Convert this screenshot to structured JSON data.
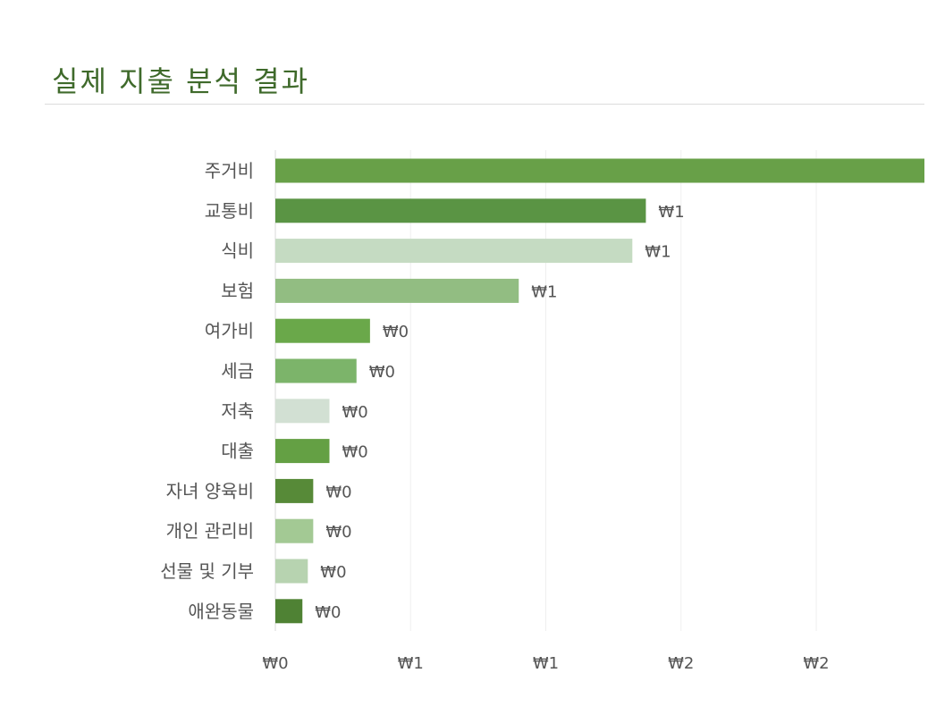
{
  "header": {
    "title": "실제 지출 분석 결과"
  },
  "chart_data": {
    "type": "bar",
    "orientation": "horizontal",
    "title": "실제 지출 분석 결과",
    "xlabel": "",
    "ylabel": "",
    "xlim": [
      0,
      2.4
    ],
    "grid": true,
    "legend": "none",
    "categories": [
      "주거비",
      "교통비",
      "식비",
      "보험",
      "여가비",
      "세금",
      "저축",
      "대출",
      "자녀 양육비",
      "개인 관리비",
      "선물 및 기부",
      "애완동물"
    ],
    "values": [
      2.4,
      1.37,
      1.32,
      0.9,
      0.35,
      0.3,
      0.2,
      0.2,
      0.14,
      0.14,
      0.12,
      0.1
    ],
    "value_labels": [
      "",
      "₩1",
      "₩1",
      "₩1",
      "₩0",
      "₩0",
      "₩0",
      "₩0",
      "₩0",
      "₩0",
      "₩0",
      "₩0"
    ],
    "bar_colors": [
      "#68a048",
      "#5a9444",
      "#c5dbc2",
      "#92bd82",
      "#6aa84a",
      "#7cb46a",
      "#d2e0d3",
      "#64a044",
      "#578a38",
      "#a3c994",
      "#b7d3b0",
      "#4f8234"
    ],
    "x_ticks": [
      0,
      0.5,
      1.0,
      1.5,
      2.0
    ],
    "x_tick_labels": [
      "₩0",
      "₩1",
      "₩1",
      "₩2",
      "₩2"
    ]
  }
}
